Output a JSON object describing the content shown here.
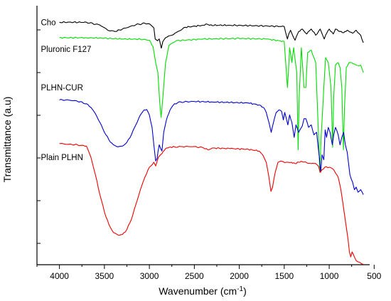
{
  "chart_data": {
    "type": "line",
    "xlabel": "Wavenumber (cm",
    "xlabel_sup": "-1",
    "xlabel_tail": ")",
    "ylabel": "Transmittance (a.u)",
    "xlim": [
      4250,
      550
    ],
    "x_reversed": true,
    "x_ticks": [
      4000,
      3500,
      3000,
      2500,
      2000,
      1500,
      1000,
      500
    ],
    "y_ticks": 6,
    "y_tick_labels": "none",
    "grid": false,
    "legend": "none",
    "series": [
      {
        "name": "Cho",
        "color": "#000000",
        "label_at": [
          4270,
          0.962
        ],
        "points": [
          [
            4000,
            0.962
          ],
          [
            3700,
            0.962
          ],
          [
            3550,
            0.951
          ],
          [
            3450,
            0.928
          ],
          [
            3380,
            0.925
          ],
          [
            3300,
            0.935
          ],
          [
            3150,
            0.952
          ],
          [
            3050,
            0.958
          ],
          [
            3000,
            0.956
          ],
          [
            2950,
            0.94
          ],
          [
            2935,
            0.895
          ],
          [
            2910,
            0.888
          ],
          [
            2890,
            0.895
          ],
          [
            2867,
            0.858
          ],
          [
            2850,
            0.885
          ],
          [
            2820,
            0.9
          ],
          [
            2750,
            0.91
          ],
          [
            2600,
            0.942
          ],
          [
            2400,
            0.95
          ],
          [
            2360,
            0.955
          ],
          [
            2330,
            0.95
          ],
          [
            2100,
            0.95
          ],
          [
            1800,
            0.948
          ],
          [
            1500,
            0.945
          ],
          [
            1465,
            0.895
          ],
          [
            1450,
            0.915
          ],
          [
            1430,
            0.93
          ],
          [
            1380,
            0.89
          ],
          [
            1365,
            0.905
          ],
          [
            1340,
            0.925
          ],
          [
            1300,
            0.935
          ],
          [
            1250,
            0.915
          ],
          [
            1200,
            0.935
          ],
          [
            1150,
            0.91
          ],
          [
            1100,
            0.935
          ],
          [
            1055,
            0.895
          ],
          [
            1025,
            0.92
          ],
          [
            1000,
            0.935
          ],
          [
            955,
            0.915
          ],
          [
            930,
            0.935
          ],
          [
            880,
            0.925
          ],
          [
            840,
            0.92
          ],
          [
            800,
            0.93
          ],
          [
            740,
            0.918
          ],
          [
            700,
            0.93
          ],
          [
            650,
            0.91
          ],
          [
            620,
            0.88
          ]
        ]
      },
      {
        "name": "Pluronic F127",
        "color": "#00dd00",
        "label_at": [
          4270,
          0.855
        ],
        "points": [
          [
            4000,
            0.9
          ],
          [
            3700,
            0.9
          ],
          [
            3500,
            0.898
          ],
          [
            3300,
            0.895
          ],
          [
            3100,
            0.894
          ],
          [
            3000,
            0.89
          ],
          [
            2960,
            0.865
          ],
          [
            2930,
            0.8
          ],
          [
            2905,
            0.76
          ],
          [
            2885,
            0.64
          ],
          [
            2870,
            0.58
          ],
          [
            2850,
            0.66
          ],
          [
            2820,
            0.8
          ],
          [
            2780,
            0.87
          ],
          [
            2700,
            0.888
          ],
          [
            2400,
            0.895
          ],
          [
            2000,
            0.897
          ],
          [
            1700,
            0.895
          ],
          [
            1500,
            0.885
          ],
          [
            1465,
            0.7
          ],
          [
            1455,
            0.75
          ],
          [
            1440,
            0.86
          ],
          [
            1415,
            0.8
          ],
          [
            1395,
            0.86
          ],
          [
            1360,
            0.76
          ],
          [
            1345,
            0.45
          ],
          [
            1335,
            0.65
          ],
          [
            1310,
            0.86
          ],
          [
            1280,
            0.7
          ],
          [
            1260,
            0.7
          ],
          [
            1240,
            0.84
          ],
          [
            1200,
            0.85
          ],
          [
            1150,
            0.8
          ],
          [
            1120,
            0.52
          ],
          [
            1105,
            0.36
          ],
          [
            1090,
            0.5
          ],
          [
            1060,
            0.7
          ],
          [
            1040,
            0.82
          ],
          [
            1010,
            0.8
          ],
          [
            980,
            0.7
          ],
          [
            962,
            0.46
          ],
          [
            950,
            0.66
          ],
          [
            930,
            0.79
          ],
          [
            900,
            0.8
          ],
          [
            880,
            0.78
          ],
          [
            860,
            0.7
          ],
          [
            842,
            0.45
          ],
          [
            830,
            0.62
          ],
          [
            810,
            0.78
          ],
          [
            780,
            0.8
          ],
          [
            750,
            0.8
          ],
          [
            700,
            0.79
          ],
          [
            650,
            0.79
          ],
          [
            620,
            0.76
          ]
        ]
      },
      {
        "name": "PLHN-CUR",
        "color": "#0000cc",
        "label_at": [
          4270,
          0.7
        ],
        "points": [
          [
            4000,
            0.65
          ],
          [
            3900,
            0.65
          ],
          [
            3800,
            0.645
          ],
          [
            3700,
            0.635
          ],
          [
            3650,
            0.62
          ],
          [
            3600,
            0.595
          ],
          [
            3550,
            0.56
          ],
          [
            3500,
            0.52
          ],
          [
            3450,
            0.49
          ],
          [
            3400,
            0.47
          ],
          [
            3350,
            0.462
          ],
          [
            3300,
            0.465
          ],
          [
            3250,
            0.48
          ],
          [
            3200,
            0.51
          ],
          [
            3150,
            0.55
          ],
          [
            3100,
            0.59
          ],
          [
            3060,
            0.61
          ],
          [
            3030,
            0.612
          ],
          [
            3000,
            0.59
          ],
          [
            2970,
            0.54
          ],
          [
            2950,
            0.47
          ],
          [
            2930,
            0.405
          ],
          [
            2915,
            0.415
          ],
          [
            2890,
            0.47
          ],
          [
            2860,
            0.445
          ],
          [
            2840,
            0.52
          ],
          [
            2810,
            0.57
          ],
          [
            2770,
            0.61
          ],
          [
            2720,
            0.635
          ],
          [
            2650,
            0.642
          ],
          [
            2500,
            0.644
          ],
          [
            2300,
            0.642
          ],
          [
            2100,
            0.64
          ],
          [
            1900,
            0.638
          ],
          [
            1780,
            0.63
          ],
          [
            1730,
            0.62
          ],
          [
            1700,
            0.6
          ],
          [
            1670,
            0.56
          ],
          [
            1645,
            0.52
          ],
          [
            1620,
            0.56
          ],
          [
            1590,
            0.6
          ],
          [
            1560,
            0.61
          ],
          [
            1530,
            0.605
          ],
          [
            1510,
            0.57
          ],
          [
            1495,
            0.6
          ],
          [
            1460,
            0.55
          ],
          [
            1440,
            0.59
          ],
          [
            1415,
            0.56
          ],
          [
            1390,
            0.5
          ],
          [
            1370,
            0.55
          ],
          [
            1340,
            0.52
          ],
          [
            1300,
            0.545
          ],
          [
            1280,
            0.575
          ],
          [
            1260,
            0.575
          ],
          [
            1230,
            0.54
          ],
          [
            1200,
            0.55
          ],
          [
            1170,
            0.51
          ],
          [
            1140,
            0.52
          ],
          [
            1110,
            0.42
          ],
          [
            1095,
            0.36
          ],
          [
            1080,
            0.43
          ],
          [
            1060,
            0.41
          ],
          [
            1045,
            0.53
          ],
          [
            1030,
            0.5
          ],
          [
            1010,
            0.54
          ],
          [
            990,
            0.52
          ],
          [
            965,
            0.47
          ],
          [
            950,
            0.51
          ],
          [
            930,
            0.54
          ],
          [
            900,
            0.51
          ],
          [
            880,
            0.47
          ],
          [
            860,
            0.5
          ],
          [
            840,
            0.52
          ],
          [
            820,
            0.47
          ],
          [
            800,
            0.44
          ],
          [
            770,
            0.35
          ],
          [
            740,
            0.32
          ],
          [
            720,
            0.29
          ],
          [
            700,
            0.3
          ],
          [
            680,
            0.28
          ],
          [
            650,
            0.29
          ],
          [
            620,
            0.27
          ]
        ]
      },
      {
        "name": "Plain PLHN",
        "color": "#ee0000",
        "label_at": [
          4270,
          0.42
        ],
        "points": [
          [
            4000,
            0.475
          ],
          [
            3900,
            0.472
          ],
          [
            3800,
            0.47
          ],
          [
            3750,
            0.468
          ],
          [
            3700,
            0.465
          ],
          [
            3650,
            0.42
          ],
          [
            3600,
            0.35
          ],
          [
            3550,
            0.27
          ],
          [
            3500,
            0.2
          ],
          [
            3450,
            0.15
          ],
          [
            3400,
            0.118
          ],
          [
            3350,
            0.108
          ],
          [
            3300,
            0.11
          ],
          [
            3250,
            0.13
          ],
          [
            3200,
            0.17
          ],
          [
            3150,
            0.23
          ],
          [
            3100,
            0.29
          ],
          [
            3050,
            0.34
          ],
          [
            3000,
            0.38
          ],
          [
            2950,
            0.4
          ],
          [
            2930,
            0.385
          ],
          [
            2900,
            0.42
          ],
          [
            2860,
            0.435
          ],
          [
            2820,
            0.455
          ],
          [
            2780,
            0.46
          ],
          [
            2720,
            0.462
          ],
          [
            2650,
            0.463
          ],
          [
            2500,
            0.463
          ],
          [
            2400,
            0.458
          ],
          [
            2350,
            0.45
          ],
          [
            2300,
            0.457
          ],
          [
            2100,
            0.455
          ],
          [
            1900,
            0.452
          ],
          [
            1780,
            0.445
          ],
          [
            1740,
            0.43
          ],
          [
            1700,
            0.4
          ],
          [
            1670,
            0.34
          ],
          [
            1648,
            0.283
          ],
          [
            1630,
            0.3
          ],
          [
            1600,
            0.36
          ],
          [
            1570,
            0.4
          ],
          [
            1540,
            0.405
          ],
          [
            1510,
            0.402
          ],
          [
            1480,
            0.4
          ],
          [
            1420,
            0.4
          ],
          [
            1380,
            0.395
          ],
          [
            1340,
            0.4
          ],
          [
            1300,
            0.402
          ],
          [
            1250,
            0.398
          ],
          [
            1200,
            0.395
          ],
          [
            1150,
            0.395
          ],
          [
            1120,
            0.385
          ],
          [
            1100,
            0.36
          ],
          [
            1080,
            0.37
          ],
          [
            1050,
            0.38
          ],
          [
            1000,
            0.38
          ],
          [
            950,
            0.37
          ],
          [
            900,
            0.34
          ],
          [
            870,
            0.29
          ],
          [
            850,
            0.24
          ],
          [
            830,
            0.19
          ],
          [
            810,
            0.14
          ],
          [
            790,
            0.09
          ],
          [
            775,
            0.04
          ],
          [
            760,
            0.02
          ],
          [
            745,
            0.04
          ],
          [
            720,
            0.02
          ],
          [
            700,
            0.005
          ],
          [
            680,
            0.0
          ],
          [
            650,
            -0.005
          ],
          [
            620,
            -0.01
          ]
        ]
      }
    ]
  }
}
